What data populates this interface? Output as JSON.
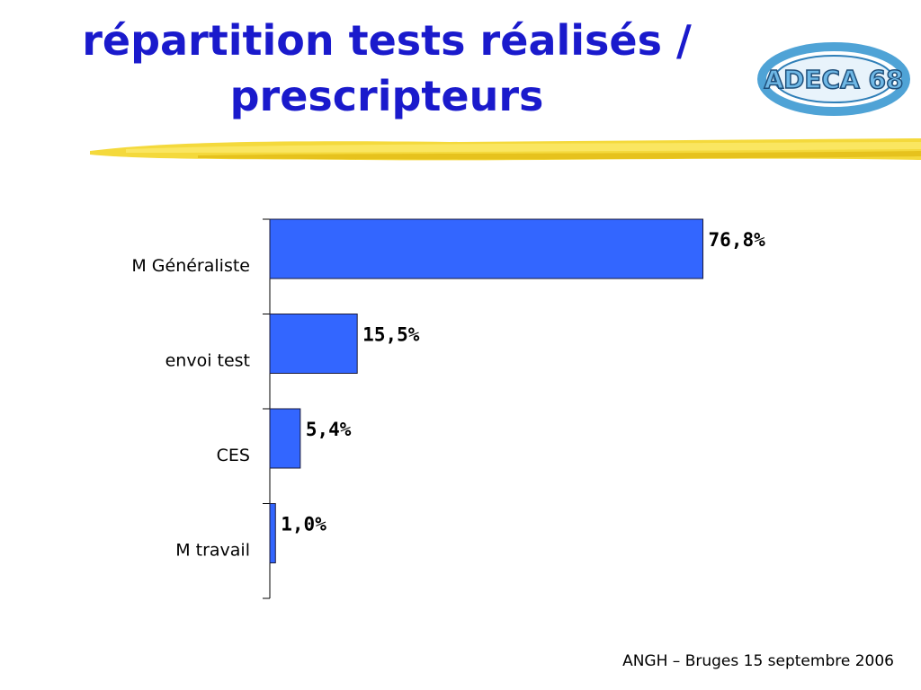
{
  "slide": {
    "title_line1": "répartition tests réalisés /",
    "title_line2": "prescripteurs",
    "logo_text": "ADECA 68",
    "footer": "ANGH – Bruges 15 septembre 2006"
  },
  "colors": {
    "title": "#1a1acc",
    "bar_fill": "#3366ff",
    "bar_stroke": "#1a1a3a",
    "brush_yellow": "#f2d21a",
    "logo_blue": "#4fa3d6"
  },
  "chart_data": {
    "type": "bar",
    "orientation": "horizontal",
    "categories": [
      "M Généraliste",
      "envoi test",
      "CES",
      "M travail"
    ],
    "values": [
      76.8,
      15.5,
      5.4,
      1.0
    ],
    "value_labels": [
      "76,8%",
      "15,5%",
      "5,4%",
      "1,0%"
    ],
    "unit": "%",
    "xlim": [
      0,
      100
    ],
    "grid": false,
    "legend": "none",
    "title": "",
    "xlabel": "",
    "ylabel": ""
  }
}
